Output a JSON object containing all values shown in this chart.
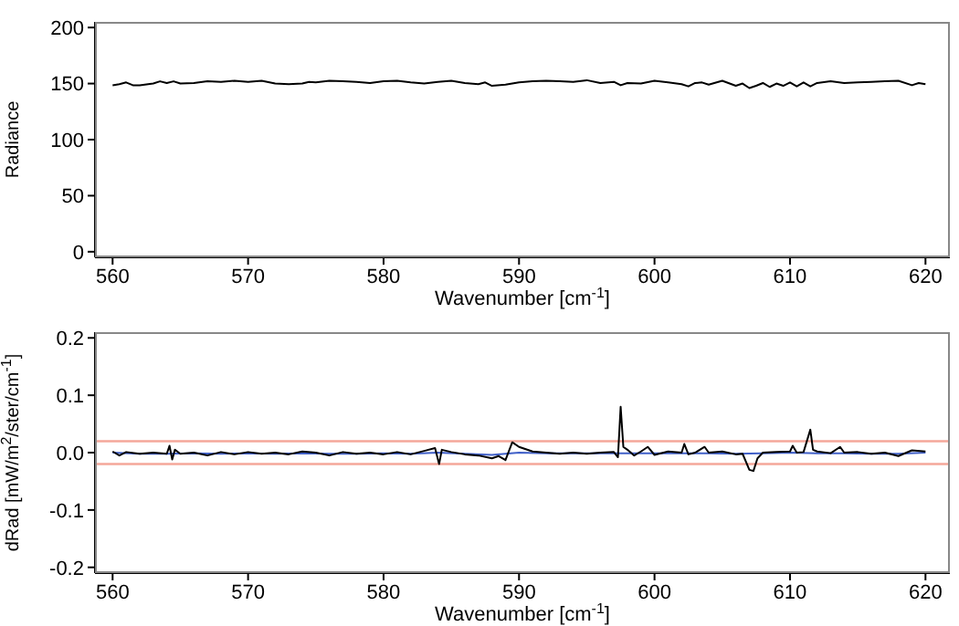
{
  "chart_data": [
    {
      "type": "line",
      "xlabel": "Wavenumber [cm$^{-1}$]",
      "ylabel": "Radiance",
      "xlim": [
        558.7,
        621.8
      ],
      "xticks": [
        560,
        570,
        580,
        590,
        600,
        610,
        620
      ],
      "ylim": [
        -5,
        205
      ],
      "yticks": [
        0,
        50,
        100,
        150,
        200
      ],
      "series": [
        {
          "color": "#000000",
          "x": [
            560,
            560.5,
            561,
            561.5,
            562,
            563,
            563.5,
            564,
            564.5,
            565,
            566,
            567,
            568,
            569,
            570,
            571,
            572,
            573,
            574,
            574.5,
            575,
            576,
            577,
            578,
            579,
            580,
            581,
            582,
            583,
            584,
            585,
            586,
            587,
            587.5,
            588,
            589,
            590,
            591,
            592,
            593,
            594,
            595,
            596,
            597,
            597.5,
            598,
            599,
            600,
            601,
            602,
            602.5,
            603,
            603.5,
            604,
            605,
            606,
            606.5,
            607,
            607.5,
            608,
            608.5,
            609,
            609.5,
            610,
            610.5,
            611,
            611.5,
            612,
            613,
            614,
            615,
            616,
            617,
            618,
            619,
            619.5,
            620
          ],
          "values": [
            148.5,
            149.5,
            151,
            148.5,
            148.5,
            150,
            152,
            150.5,
            152,
            150,
            150.5,
            152,
            151.5,
            152.5,
            151.5,
            152.5,
            150,
            149.5,
            150,
            151.5,
            151,
            152.5,
            152,
            151.5,
            150.5,
            152,
            152.5,
            151,
            150,
            151.5,
            152.5,
            150.5,
            149.5,
            151,
            148,
            149,
            151,
            152,
            152.5,
            152,
            151.5,
            153,
            150.5,
            151.5,
            148.5,
            150.5,
            150,
            152.5,
            151,
            149.5,
            147.5,
            150.5,
            151,
            149,
            152.5,
            148,
            150,
            146,
            148,
            150.5,
            147,
            150,
            148,
            151,
            147.5,
            151,
            147.5,
            150.5,
            152,
            150.5,
            151,
            151.5,
            152,
            152.5,
            148.5,
            150.5,
            149.5
          ]
        }
      ]
    },
    {
      "type": "line",
      "xlabel": "Wavenumber [cm$^{-1}$]",
      "ylabel": "dRad [mW/m$^{2}$/ster/cm$^{-1}$]",
      "xlim": [
        558.7,
        621.8
      ],
      "xticks": [
        560,
        570,
        580,
        590,
        600,
        610,
        620
      ],
      "ylim": [
        -0.21,
        0.21
      ],
      "yticks": [
        -0.2,
        -0.1,
        {
          "value": 0,
          "label": "0.0"
        },
        0.1,
        0.2
      ],
      "ref_lines": [
        {
          "axis": "y",
          "value": 0.02,
          "color": "#f4a79a"
        },
        {
          "axis": "y",
          "value": -0.02,
          "color": "#f4a79a"
        }
      ],
      "series": [
        {
          "color": "#4060c8",
          "x": [
            560,
            562,
            564,
            566,
            568,
            570,
            572,
            574,
            576,
            578,
            580,
            582,
            584,
            586,
            588,
            590,
            592,
            594,
            596,
            598,
            600,
            602,
            604,
            606,
            608,
            610,
            612,
            614,
            616,
            618,
            620
          ],
          "values": [
            0,
            -0.002,
            -0.002,
            -0.001,
            -0.002,
            -0.001,
            -0.002,
            -0.001,
            -0.002,
            -0.002,
            -0.001,
            -0.002,
            0,
            -0.002,
            -0.004,
            0,
            -0.001,
            -0.001,
            -0.001,
            -0.001,
            -0.001,
            -0.001,
            -0.001,
            -0.002,
            -0.001,
            0,
            -0.001,
            -0.001,
            -0.002,
            -0.002,
            0
          ]
        },
        {
          "color": "#000000",
          "x": [
            560,
            560.5,
            561,
            562,
            563,
            564,
            564.2,
            564.4,
            564.6,
            565,
            566,
            567,
            568,
            569,
            570,
            571,
            572,
            573,
            574,
            575,
            576,
            577,
            578,
            579,
            580,
            581,
            582,
            583,
            583.8,
            584.1,
            584.3,
            585,
            586,
            587,
            588,
            588.5,
            589,
            589.5,
            590,
            591,
            592,
            593,
            594,
            595,
            596,
            597,
            597.3,
            597.5,
            597.7,
            598,
            598.5,
            599,
            599.5,
            600,
            601,
            602,
            602.2,
            602.5,
            603,
            603.7,
            604,
            605,
            606,
            606.5,
            607,
            607.3,
            607.6,
            608,
            609,
            610,
            610.2,
            610.5,
            611,
            611.5,
            611.7,
            612,
            613,
            613.7,
            614,
            615,
            616,
            617,
            618,
            619,
            620
          ],
          "values": [
            0.002,
            -0.005,
            0.001,
            -0.002,
            0,
            -0.002,
            0.012,
            -0.012,
            0.005,
            -0.002,
            0,
            -0.005,
            0.001,
            -0.003,
            0.001,
            -0.002,
            0,
            -0.003,
            0.002,
            0,
            -0.005,
            0.001,
            -0.002,
            0,
            -0.003,
            0.001,
            -0.003,
            0.003,
            0.008,
            -0.02,
            0.005,
            0.001,
            -0.003,
            -0.005,
            -0.01,
            -0.006,
            -0.013,
            0.018,
            0.01,
            0.002,
            0,
            -0.002,
            0,
            -0.002,
            0,
            0.001,
            -0.008,
            0.08,
            0.01,
            0.005,
            -0.005,
            0.002,
            0.01,
            -0.004,
            0.002,
            0,
            0.015,
            -0.003,
            0,
            0.01,
            0,
            0.002,
            -0.003,
            -0.002,
            -0.03,
            -0.032,
            -0.01,
            0,
            0.001,
            0.002,
            0.012,
            0,
            0.001,
            0.04,
            0.005,
            0.002,
            -0.001,
            0.01,
            0,
            0.001,
            -0.002,
            0,
            -0.006,
            0.004,
            0.002
          ]
        }
      ]
    }
  ]
}
